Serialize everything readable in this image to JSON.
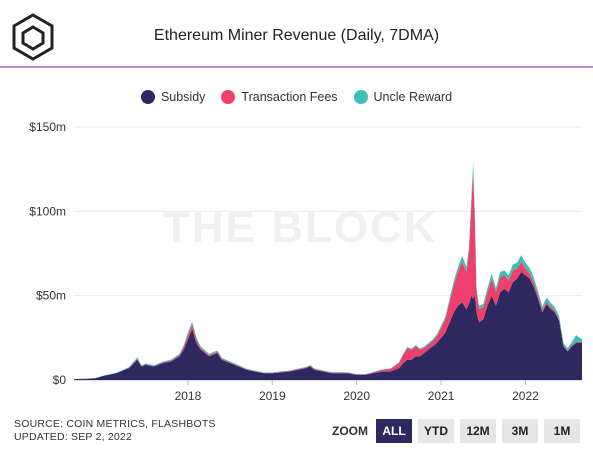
{
  "header": {
    "title": "Ethereum Miner Revenue (Daily, 7DMA)",
    "logo_icon": "the-block-cube-icon"
  },
  "watermark": "THE BLOCK",
  "legend": [
    {
      "label": "Subsidy",
      "color": "#2e2860"
    },
    {
      "label": "Transaction Fees",
      "color": "#ef3f6b"
    },
    {
      "label": "Uncle Reward",
      "color": "#3fbfb3"
    }
  ],
  "footer": {
    "source": "SOURCE: COIN METRICS, FLASHBOTS",
    "updated": "UPDATED: SEP 2, 2022"
  },
  "zoom": {
    "label": "ZOOM",
    "buttons": [
      "ALL",
      "YTD",
      "12M",
      "3M",
      "1M"
    ],
    "active": "ALL"
  },
  "chart_data": {
    "type": "area",
    "stacked": true,
    "title": "Ethereum Miner Revenue (Daily, 7DMA)",
    "y_tick_labels": [
      "$0",
      "$50m",
      "$100m",
      "$150m"
    ],
    "y_ticks": [
      0,
      50,
      100,
      150
    ],
    "x_tick_labels": [
      "2018",
      "2019",
      "2020",
      "2021",
      "2022"
    ],
    "x_ticks": [
      2018,
      2019,
      2020,
      2021,
      2022
    ],
    "xlim": [
      2016.65,
      2022.67
    ],
    "ylim": [
      0,
      150
    ],
    "y_unit": "millions USD",
    "legend_position": "top-center",
    "x": [
      2016.65,
      2016.9,
      2017.0,
      2017.15,
      2017.3,
      2017.4,
      2017.45,
      2017.5,
      2017.6,
      2017.7,
      2017.8,
      2017.9,
      2017.95,
      2018.0,
      2018.05,
      2018.1,
      2018.15,
      2018.25,
      2018.35,
      2018.4,
      2018.5,
      2018.6,
      2018.7,
      2018.8,
      2018.9,
      2019.0,
      2019.2,
      2019.4,
      2019.45,
      2019.5,
      2019.6,
      2019.7,
      2019.8,
      2019.9,
      2020.0,
      2020.1,
      2020.2,
      2020.3,
      2020.4,
      2020.5,
      2020.55,
      2020.6,
      2020.65,
      2020.7,
      2020.75,
      2020.8,
      2020.85,
      2020.9,
      2020.95,
      2021.0,
      2021.05,
      2021.1,
      2021.15,
      2021.2,
      2021.25,
      2021.3,
      2021.33,
      2021.36,
      2021.38,
      2021.4,
      2021.42,
      2021.45,
      2021.5,
      2021.55,
      2021.6,
      2021.65,
      2021.7,
      2021.75,
      2021.8,
      2021.85,
      2021.9,
      2021.95,
      2022.0,
      2022.05,
      2022.1,
      2022.15,
      2022.2,
      2022.25,
      2022.3,
      2022.35,
      2022.4,
      2022.45,
      2022.5,
      2022.55,
      2022.6,
      2022.67
    ],
    "series": [
      {
        "name": "Subsidy",
        "values": [
          0.5,
          1.0,
          2.5,
          4,
          7,
          12,
          8,
          9,
          8,
          10,
          11,
          14,
          18,
          24,
          30,
          22,
          18,
          14,
          16,
          12,
          10,
          8,
          6,
          5,
          4,
          4,
          5,
          7,
          8,
          6,
          5,
          4,
          4,
          4,
          3,
          3,
          4,
          5,
          5,
          7,
          10,
          12,
          12,
          14,
          14,
          16,
          18,
          20,
          22,
          25,
          28,
          34,
          40,
          44,
          46,
          42,
          45,
          50,
          48,
          50,
          40,
          34,
          36,
          44,
          50,
          44,
          52,
          54,
          52,
          58,
          60,
          64,
          62,
          60,
          55,
          48,
          40,
          45,
          42,
          40,
          35,
          20,
          17,
          20,
          22,
          22
        ]
      },
      {
        "name": "Transaction Fees",
        "values": [
          0.0,
          0.0,
          0.0,
          0.1,
          0.2,
          0.6,
          0.3,
          0.3,
          0.3,
          0.4,
          0.5,
          0.8,
          1.5,
          2.5,
          3.0,
          2.0,
          1.0,
          0.8,
          0.6,
          0.5,
          0.4,
          0.3,
          0.2,
          0.2,
          0.2,
          0.2,
          0.3,
          0.4,
          0.5,
          0.4,
          0.4,
          0.4,
          0.4,
          0.3,
          0.3,
          0.3,
          0.5,
          1.0,
          1.5,
          3,
          5,
          7,
          6,
          6,
          4,
          3,
          3,
          3,
          4,
          6,
          8,
          12,
          16,
          20,
          24,
          22,
          30,
          55,
          75,
          45,
          12,
          8,
          7,
          8,
          10,
          8,
          9,
          8,
          7,
          7,
          6,
          6,
          4,
          3,
          2.5,
          2,
          1.5,
          1.5,
          1.2,
          1,
          0.8,
          0.5,
          0.4,
          0.5,
          0.6,
          0.6
        ]
      },
      {
        "name": "Uncle Reward",
        "values": [
          0.0,
          0.1,
          0.1,
          0.2,
          0.4,
          0.8,
          0.5,
          0.5,
          0.5,
          0.5,
          0.6,
          0.8,
          1.0,
          1.5,
          1.5,
          1.2,
          1.0,
          0.8,
          0.9,
          0.7,
          0.6,
          0.5,
          0.4,
          0.3,
          0.3,
          0.3,
          0.3,
          0.4,
          0.4,
          0.4,
          0.3,
          0.3,
          0.3,
          0.3,
          0.2,
          0.2,
          0.3,
          0.3,
          0.3,
          0.4,
          0.5,
          0.6,
          0.6,
          0.7,
          0.7,
          0.8,
          0.9,
          1.0,
          1.0,
          1.2,
          1.5,
          2.0,
          2.5,
          3.0,
          3.5,
          3.0,
          3.5,
          4.0,
          6.0,
          4.0,
          2.5,
          2.0,
          2.0,
          2.5,
          3.0,
          2.5,
          3.0,
          3.0,
          3.0,
          3.5,
          3.5,
          4.0,
          3.5,
          3.5,
          3.0,
          2.5,
          2.0,
          2.5,
          2.5,
          2.0,
          2.0,
          1.5,
          1.5,
          2.0,
          4.0,
          1.5
        ]
      }
    ]
  }
}
